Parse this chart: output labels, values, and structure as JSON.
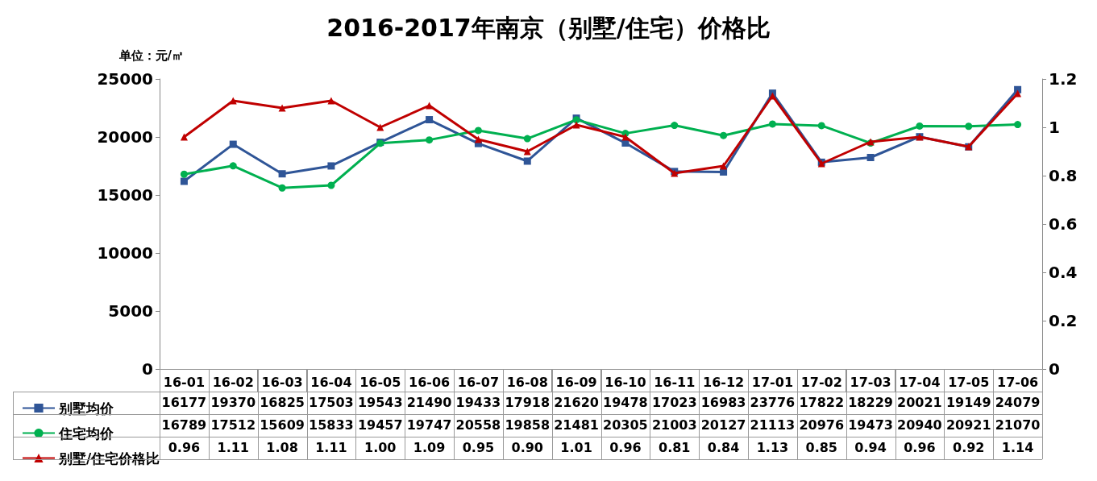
{
  "chart_data": {
    "type": "line",
    "title": "2016-2017年南京（别墅/住宅）价格比",
    "ylabel": "单位：元/㎡",
    "categories": [
      "16-01",
      "16-02",
      "16-03",
      "16-04",
      "16-05",
      "16-06",
      "16-07",
      "16-08",
      "16-09",
      "16-10",
      "16-11",
      "16-12",
      "17-01",
      "17-02",
      "17-03",
      "17-04",
      "17-05",
      "17-06"
    ],
    "series": [
      {
        "name": "别墅均价",
        "color": "#2f5597",
        "marker": "square",
        "values": [
          16177,
          19370,
          16825,
          17503,
          19543,
          21490,
          19433,
          17918,
          21620,
          19478,
          17023,
          16983,
          23776,
          17822,
          18229,
          20021,
          19149,
          24079
        ]
      },
      {
        "name": "住宅均价",
        "color": "#00b050",
        "marker": "circle",
        "values": [
          16789,
          17512,
          15609,
          15833,
          19457,
          19747,
          20558,
          19858,
          21481,
          20305,
          21003,
          20127,
          21113,
          20976,
          19473,
          20940,
          20921,
          21070
        ]
      },
      {
        "name": "别墅/住宅价格比",
        "color": "#c00000",
        "marker": "triangle",
        "axis": "y2",
        "values": [
          0.96,
          1.11,
          1.08,
          1.11,
          1.0,
          1.09,
          0.95,
          0.9,
          1.01,
          0.96,
          0.81,
          0.84,
          1.13,
          0.85,
          0.94,
          0.96,
          0.92,
          1.14
        ],
        "value_labels": [
          "0.96",
          "1.11",
          "1.08",
          "1.11",
          "1.00",
          "1.09",
          "0.95",
          "0.90",
          "1.01",
          "0.96",
          "0.81",
          "0.84",
          "1.13",
          "0.85",
          "0.94",
          "0.96",
          "0.92",
          "1.14"
        ]
      }
    ],
    "ylim": [
      0,
      25000
    ],
    "yticks": [
      0,
      5000,
      10000,
      15000,
      20000,
      25000
    ],
    "y2lim": [
      0,
      1.2
    ],
    "y2ticks": [
      0,
      0.2,
      0.4,
      0.6,
      0.8,
      1,
      1.2
    ],
    "grid": false,
    "legend": "bottom",
    "data_labels": true
  }
}
